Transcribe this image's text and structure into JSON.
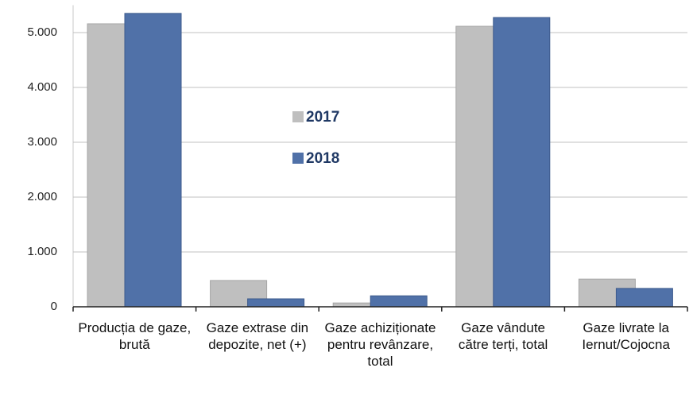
{
  "chart_data": {
    "type": "bar",
    "categories": [
      "Producția de gaze, brută",
      "Gaze extrase din depozite, net (+)",
      "Gaze achiziționate pentru revânzare, total",
      "Gaze vândute către terți, total",
      "Gaze livrate la Iernut/Cojocna"
    ],
    "series": [
      {
        "name": "2017",
        "color": "#bfbfbf",
        "values": [
          5160,
          480,
          70,
          5115,
          505
        ]
      },
      {
        "name": "2018",
        "color": "#5071a8",
        "values": [
          5350,
          145,
          200,
          5275,
          335
        ]
      }
    ],
    "ylim": [
      0,
      5500
    ],
    "yticks": [
      0,
      {
        "value": 1000,
        "label": "1.000"
      },
      {
        "value": 2000,
        "label": "2.000"
      },
      {
        "value": 3000,
        "label": "3.000"
      },
      {
        "value": 4000,
        "label": "4.000"
      },
      {
        "value": 5000,
        "label": "5.000"
      }
    ],
    "grid": true
  }
}
